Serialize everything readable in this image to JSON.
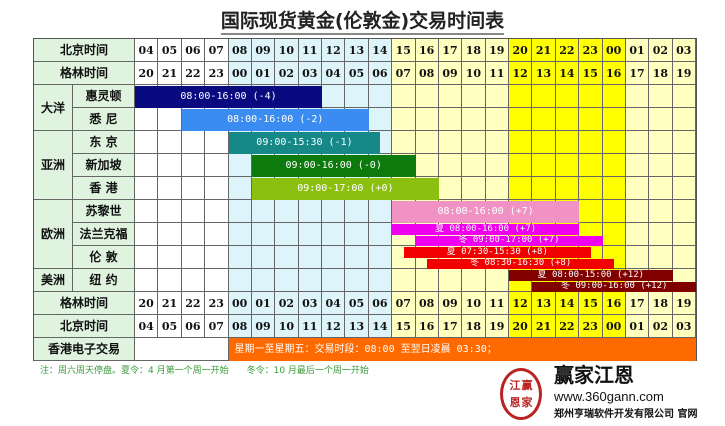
{
  "title": "国际现货黄金(伦敦金)交易时间表",
  "colors": {
    "white": "#ffffff",
    "asia_day": "#dcf4fa",
    "europe": "#ffffc0",
    "peak": "#ffff00",
    "label": "#dff3df"
  },
  "header": {
    "beijing_label": "北京时间",
    "gmt_label": "格林时间",
    "beijing_hours": [
      "04",
      "05",
      "06",
      "07",
      "08",
      "09",
      "10",
      "11",
      "12",
      "13",
      "14",
      "15",
      "16",
      "17",
      "18",
      "19",
      "20",
      "21",
      "22",
      "23",
      "00",
      "01",
      "02",
      "03"
    ],
    "gmt_hours": [
      "20",
      "21",
      "22",
      "23",
      "00",
      "01",
      "02",
      "03",
      "04",
      "05",
      "06",
      "07",
      "08",
      "09",
      "10",
      "11",
      "12",
      "13",
      "14",
      "15",
      "16",
      "17",
      "18",
      "19"
    ]
  },
  "regions": [
    {
      "name": "大洋",
      "rows": 2
    },
    {
      "name": "亚洲",
      "rows": 3
    },
    {
      "name": "欧洲",
      "rows": 3
    },
    {
      "name": "美洲",
      "rows": 1
    }
  ],
  "markets": [
    {
      "city": "惠灵顿",
      "bars": [
        {
          "text": "08:00-16:00  (-4)",
          "start": "04:00",
          "end": "12:00",
          "color": "#0a0a80"
        }
      ]
    },
    {
      "city": "悉 尼",
      "bars": [
        {
          "text": "08:00-16:00  (-2)",
          "start": "06:00",
          "end": "14:00",
          "color": "#3b8cf0"
        }
      ]
    },
    {
      "city": "东 京",
      "bars": [
        {
          "text": "09:00-15:30  (-1)",
          "start": "08:00",
          "end": "14:30",
          "color": "#168888"
        }
      ]
    },
    {
      "city": "新加坡",
      "bars": [
        {
          "text": "09:00-16:00  (-0)",
          "start": "09:00",
          "end": "16:00",
          "color": "#0c7a0c"
        }
      ]
    },
    {
      "city": "香 港",
      "bars": [
        {
          "text": "09:00-17:00  (+0)",
          "start": "09:00",
          "end": "17:00",
          "color": "#8cc010"
        }
      ]
    },
    {
      "city": "苏黎世",
      "bars": [
        {
          "text": "08:00-16:00  (+7)",
          "start": "15:00",
          "end": "23:00",
          "color": "#f092c4"
        }
      ]
    },
    {
      "city": "法兰克福",
      "bars": [
        {
          "text": "夏 08:00-16:00 (+7)",
          "start": "15:00",
          "end": "23:00",
          "color": "#ee00ee"
        },
        {
          "text": "冬 09:00-17:00 (+7)",
          "start": "16:00",
          "end": "00:00",
          "color": "#ee00ee"
        }
      ]
    },
    {
      "city": "伦 敦",
      "bars": [
        {
          "text": "夏 07:30-15:30 (+8)",
          "start": "15:30",
          "end": "23:30",
          "color": "#f00000"
        },
        {
          "text": "冬 08:30-16:30 (+8)",
          "start": "16:30",
          "end": "00:30",
          "color": "#f00000"
        }
      ]
    },
    {
      "city": "纽 约",
      "bars": [
        {
          "text": "夏 08:00-15:00 (+12)",
          "start": "20:00",
          "end": "03:00",
          "color": "#800000"
        },
        {
          "text": "冬 09:00-16:00 (+12)",
          "start": "21:00",
          "end": "04:00",
          "color": "#800000"
        }
      ]
    }
  ],
  "hk_electronic": {
    "label": "香港电子交易",
    "text": "星期一至星期五：交易时段：08:00 至翌日凌晨 03:30；",
    "color": "#ff6a00"
  },
  "note": "注：周六周天停盘。夏令：4 月第一个周一开始　　冬令：10 月最后一个周一开始",
  "logo": {
    "seal": [
      "江",
      "赢",
      "恩",
      "家"
    ],
    "brand": "赢家江恩",
    "url": "www.360gann.com",
    "company": "郑州亨瑞软件开发有限公司 官网"
  }
}
